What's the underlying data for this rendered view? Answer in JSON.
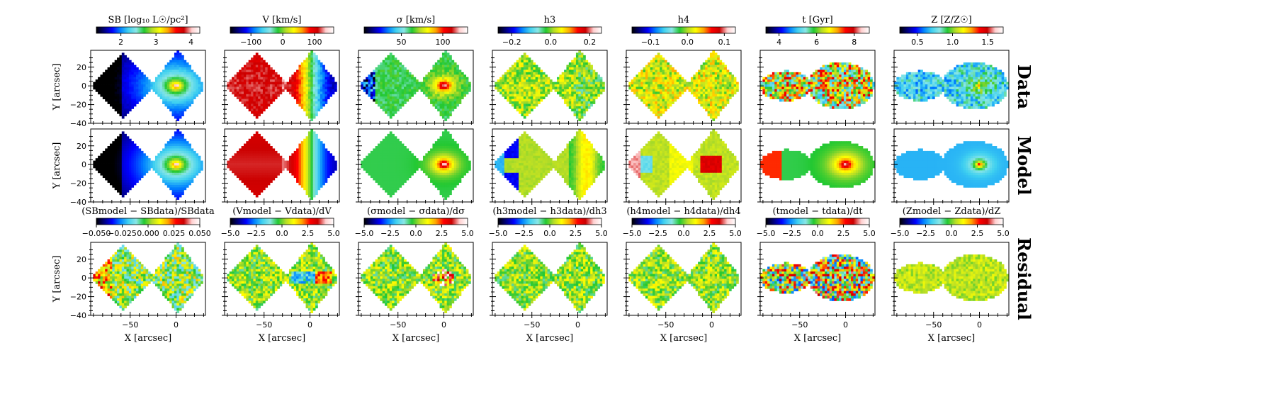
{
  "colors": {
    "scale": [
      "#000000",
      "#00007f",
      "#0000ff",
      "#0080ff",
      "#3fd0f0",
      "#8ae6e6",
      "#22c832",
      "#b4dc28",
      "#ffff00",
      "#ffa500",
      "#ff0000",
      "#cc0000",
      "#ffd0d0",
      "#ffffff"
    ],
    "axes": "#000000"
  },
  "rows": [
    {
      "label": "Data"
    },
    {
      "label": "Model"
    },
    {
      "label": "Residual"
    }
  ],
  "top_colorbars": [
    {
      "title": "SB [log₁₀ L☉/pc²]",
      "ticks": [
        "2",
        "3",
        "4"
      ],
      "tick_values": [
        2,
        3,
        4
      ],
      "range": [
        1.3,
        4.25
      ]
    },
    {
      "title": "V [km/s]",
      "ticks": [
        "−100",
        "0",
        "100"
      ],
      "tick_values": [
        -100,
        0,
        100
      ],
      "range": [
        -165,
        160
      ]
    },
    {
      "title": "σ [km/s]",
      "ticks": [
        "50",
        "100"
      ],
      "tick_values": [
        50,
        100
      ],
      "range": [
        5,
        130
      ]
    },
    {
      "title": "h3",
      "ticks": [
        "−0.2",
        "0.0",
        "0.2"
      ],
      "tick_values": [
        -0.2,
        0,
        0.2
      ],
      "range": [
        -0.27,
        0.26
      ]
    },
    {
      "title": "h4",
      "ticks": [
        "−0.1",
        "0.0",
        "0.1"
      ],
      "tick_values": [
        -0.1,
        0,
        0.1
      ],
      "range": [
        -0.15,
        0.13
      ]
    },
    {
      "title": "t [Gyr]",
      "ticks": [
        "4",
        "6",
        "8"
      ],
      "tick_values": [
        4,
        6,
        8
      ],
      "range": [
        3.3,
        8.8
      ]
    },
    {
      "title": "Z [Z/Z☉]",
      "ticks": [
        "0.5",
        "1.0",
        "1.5"
      ],
      "tick_values": [
        0.5,
        1.0,
        1.5
      ],
      "range": [
        0.25,
        1.72
      ]
    }
  ],
  "residual_colorbars": [
    {
      "title": "(SBmodel − SBdata)/SBdata",
      "ticks": [
        "−0.050",
        "−0.025",
        "0.000",
        "0.025",
        "0.050"
      ],
      "tick_values": [
        -0.05,
        -0.025,
        0,
        0.025,
        0.05
      ],
      "range": [
        -0.05,
        0.05
      ]
    },
    {
      "title": "(Vmodel − Vdata)/dV",
      "ticks": [
        "−5.0",
        "−2.5",
        "0.0",
        "2.5",
        "5.0"
      ],
      "tick_values": [
        -5,
        -2.5,
        0,
        2.5,
        5
      ],
      "range": [
        -5,
        5
      ]
    },
    {
      "title": "(σmodel − σdata)/dσ",
      "ticks": [
        "−5.0",
        "−2.5",
        "0.0",
        "2.5",
        "5.0"
      ],
      "tick_values": [
        -5,
        -2.5,
        0,
        2.5,
        5
      ],
      "range": [
        -5,
        5
      ]
    },
    {
      "title": "(h3model − h3data)/dh3",
      "ticks": [
        "−5.0",
        "−2.5",
        "0.0",
        "2.5",
        "5.0"
      ],
      "tick_values": [
        -5,
        -2.5,
        0,
        2.5,
        5
      ],
      "range": [
        -5,
        5
      ]
    },
    {
      "title": "(h4model − h4data)/dh4",
      "ticks": [
        "−5.0",
        "−2.5",
        "0.0",
        "2.5",
        "5.0"
      ],
      "tick_values": [
        -5,
        -2.5,
        0,
        2.5,
        5
      ],
      "range": [
        -5,
        5
      ]
    },
    {
      "title": "(tmodel − tdata)/dt",
      "ticks": [
        "−5.0",
        "−2.5",
        "0.0",
        "2.5",
        "5.0"
      ],
      "tick_values": [
        -5,
        -2.5,
        0,
        2.5,
        5
      ],
      "range": [
        -5,
        5
      ]
    },
    {
      "title": "(Zmodel − Zdata)/dZ",
      "ticks": [
        "−5.0",
        "−2.5",
        "0.0",
        "2.5",
        "5.0"
      ],
      "tick_values": [
        -5,
        -2.5,
        0,
        2.5,
        5
      ],
      "range": [
        -5,
        5
      ]
    }
  ],
  "axes": {
    "xlabel": "X [arcsec]",
    "ylabel": "Y [arcsec]",
    "xlim": [
      -93,
      32
    ],
    "ylim": [
      -40,
      38
    ],
    "xticks": [
      -50,
      0
    ],
    "xtick_labels": [
      "−50",
      "0"
    ],
    "yticks": [
      -40,
      -20,
      0,
      20
    ],
    "ytick_labels": [
      "−40",
      "−20",
      "0",
      "20"
    ]
  },
  "chart_data": {
    "type": "heatmap",
    "description_of_grid": "3 rows (Data, Model, Residual) x 7 columns of 2D kinematic/stellar-population maps",
    "field_shape": {
      "left_diamond_center": [
        -58,
        0
      ],
      "left_diamond_halfwidth": 36,
      "left_diamond_halfheight": 35,
      "right_diamond_center": [
        2,
        0
      ],
      "right_diamond_halfwidth": 30,
      "right_diamond_halfheight": 38,
      "galaxy_center": [
        0,
        0
      ]
    },
    "maps": [
      {
        "quantity": "SB",
        "data_center": 4.2,
        "data_outer": 1.3
      },
      {
        "quantity": "V",
        "left_side": 140,
        "right_side": -150
      },
      {
        "quantity": "sigma",
        "center": 125,
        "outer": 40
      },
      {
        "quantity": "h3",
        "typical": 0.0
      },
      {
        "quantity": "h4",
        "typical": 0.02
      },
      {
        "quantity": "t",
        "typical": 5.5
      },
      {
        "quantity": "Z",
        "typical": 0.8
      }
    ]
  }
}
